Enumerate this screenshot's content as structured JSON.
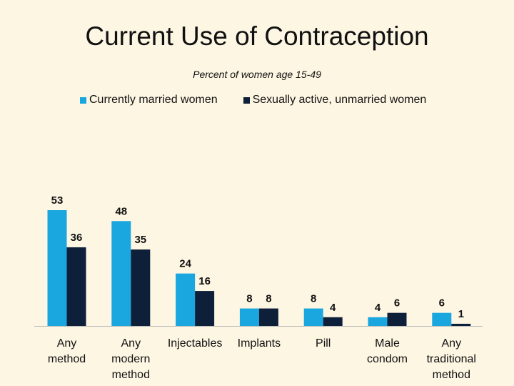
{
  "chart_data": {
    "type": "bar",
    "title": "Current Use of Contraception",
    "subtitle": "Percent of women age 15-49",
    "categories": [
      [
        "Any",
        "method"
      ],
      [
        "Any",
        "modern",
        "method"
      ],
      [
        "Injectables"
      ],
      [
        "Implants"
      ],
      [
        "Pill"
      ],
      [
        "Male",
        "condom"
      ],
      [
        "Any",
        "traditional",
        "method"
      ]
    ],
    "series": [
      {
        "name": "Currently married women",
        "color": "#1aa7e0",
        "values": [
          53,
          48,
          24,
          8,
          8,
          4,
          6
        ]
      },
      {
        "name": "Sexually active, unmarried women",
        "color": "#0e1f3a",
        "values": [
          36,
          35,
          16,
          8,
          4,
          6,
          1
        ]
      }
    ],
    "legend_position": "top",
    "grid": false,
    "ylim": [
      0,
      53
    ]
  }
}
